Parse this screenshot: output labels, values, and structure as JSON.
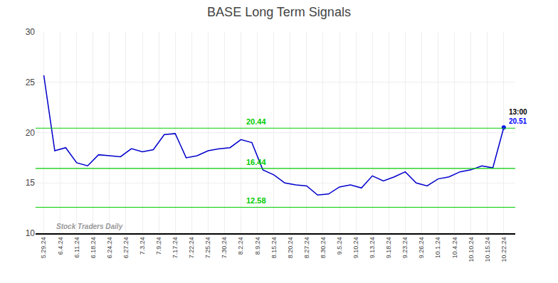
{
  "chart_data": {
    "type": "line",
    "title": "BASE Long Term Signals",
    "color": "#0000cc",
    "x": [
      0,
      2,
      4,
      6,
      8,
      10,
      12,
      14,
      16,
      18,
      20,
      22,
      24,
      26,
      28,
      30,
      32,
      34,
      36,
      38,
      40,
      42,
      44,
      46,
      48,
      50,
      52,
      54,
      56,
      58,
      60,
      62,
      64,
      66,
      68,
      70,
      72,
      74,
      76,
      78,
      80,
      82,
      84
    ],
    "values": [
      25.7,
      18.2,
      18.5,
      17.0,
      16.7,
      17.8,
      17.7,
      17.6,
      18.4,
      18.1,
      18.3,
      19.8,
      19.9,
      17.5,
      17.7,
      18.2,
      18.4,
      18.5,
      19.3,
      19.0,
      16.3,
      15.8,
      15.0,
      14.8,
      14.7,
      13.8,
      13.9,
      14.6,
      14.8,
      14.5,
      15.7,
      15.2,
      15.6,
      16.1,
      15.0,
      14.7,
      15.4,
      15.6,
      16.1,
      16.3,
      16.7,
      16.5,
      20.51
    ],
    "xlim": [
      -1.5,
      86.1
    ],
    "xticks": [
      {
        "value": 0,
        "label": "5.29.24"
      },
      {
        "value": 3,
        "label": "6.4.24"
      },
      {
        "value": 6,
        "label": "6.11.24"
      },
      {
        "value": 9,
        "label": "6.18.24"
      },
      {
        "value": 12,
        "label": "6.24.24"
      },
      {
        "value": 15,
        "label": "6.27.24"
      },
      {
        "value": 18,
        "label": "7.3.24"
      },
      {
        "value": 21,
        "label": "7.9.24"
      },
      {
        "value": 24,
        "label": "7.17.24"
      },
      {
        "value": 27,
        "label": "7.22.24"
      },
      {
        "value": 30,
        "label": "7.25.24"
      },
      {
        "value": 33,
        "label": "7.30.24"
      },
      {
        "value": 36,
        "label": "8.2.24"
      },
      {
        "value": 39,
        "label": "8.9.24"
      },
      {
        "value": 42,
        "label": "8.15.24"
      },
      {
        "value": 45,
        "label": "8.20.24"
      },
      {
        "value": 48,
        "label": "8.27.24"
      },
      {
        "value": 51,
        "label": "8.30.24"
      },
      {
        "value": 54,
        "label": "9.5.24"
      },
      {
        "value": 57,
        "label": "9.10.24"
      },
      {
        "value": 60,
        "label": "9.13.24"
      },
      {
        "value": 63,
        "label": "9.18.24"
      },
      {
        "value": 66,
        "label": "9.23.24"
      },
      {
        "value": 69,
        "label": "9.26.24"
      },
      {
        "value": 72,
        "label": "10.1.24"
      },
      {
        "value": 75,
        "label": "10.4.24"
      },
      {
        "value": 78,
        "label": "10.10.24"
      },
      {
        "value": 81,
        "label": "10.15.24"
      },
      {
        "value": 84,
        "label": "10.22.24"
      }
    ],
    "ylim": [
      10,
      30
    ],
    "yticks": [
      10,
      15,
      20,
      25,
      30
    ],
    "grid": true,
    "horizontal_lines": [
      {
        "y": 20.44,
        "label": "20.44",
        "color": "#00cc00"
      },
      {
        "y": 16.44,
        "label": "16.44",
        "color": "#00cc00"
      },
      {
        "y": 12.58,
        "label": "12.58",
        "color": "#00cc00"
      }
    ],
    "endpoint_marker": {
      "marker": "circle",
      "color": "#0000ff"
    },
    "endpoint_labels": [
      {
        "text": "13:00",
        "color": "#000000"
      },
      {
        "text": "20.51",
        "color": "#0000ff"
      }
    ],
    "watermark": "Stock Traders Daily"
  }
}
